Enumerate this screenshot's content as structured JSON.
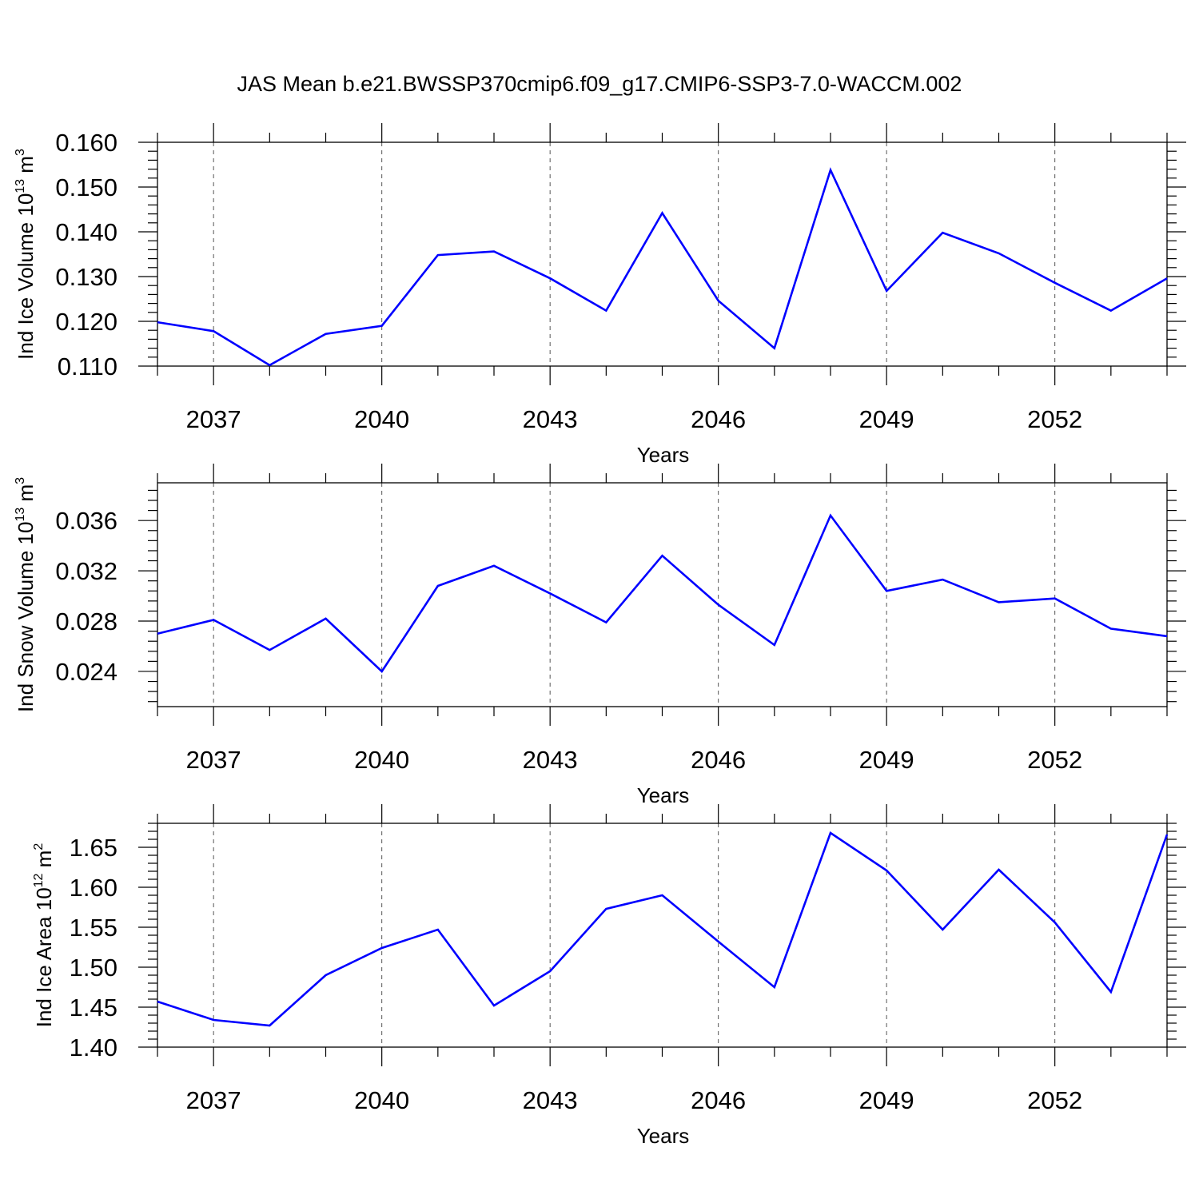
{
  "title": "JAS Mean b.e21.BWSSP370cmip6.f09_g17.CMIP6-SSP3-7.0-WACCM.002",
  "colors": {
    "series": "#0000ff",
    "axes": "#000000",
    "grid": "#555555"
  },
  "chart_data": [
    {
      "type": "line",
      "title": "",
      "xlabel": "Years",
      "ylabel": {
        "main": "Ind Ice Volume 10",
        "sup": "13",
        "unit": " m",
        "unit_sup": "3"
      },
      "xlim": [
        2036,
        2054
      ],
      "ylim": [
        0.11,
        0.16
      ],
      "xticks": [
        2037,
        2040,
        2043,
        2046,
        2049,
        2052
      ],
      "yticks": [
        0.11,
        0.12,
        0.13,
        0.14,
        0.15,
        0.16
      ],
      "ytick_labels": [
        "0.110",
        "0.120",
        "0.130",
        "0.140",
        "0.150",
        "0.160"
      ],
      "grid": "x-dashed",
      "x": [
        2036,
        2037,
        2038,
        2039,
        2040,
        2041,
        2042,
        2043,
        2044,
        2045,
        2046,
        2047,
        2048,
        2049,
        2050,
        2051,
        2052,
        2053,
        2054
      ],
      "series": [
        {
          "values": [
            0.1198,
            0.1178,
            0.1102,
            0.1172,
            0.119,
            0.1348,
            0.1356,
            0.1296,
            0.1224,
            0.1442,
            0.1246,
            0.114,
            0.1538,
            0.1268,
            0.1398,
            0.1352,
            0.1286,
            0.1224,
            0.1296
          ]
        }
      ]
    },
    {
      "type": "line",
      "title": "",
      "xlabel": "Years",
      "ylabel": {
        "main": "Ind Snow Volume 10",
        "sup": "13",
        "unit": " m",
        "unit_sup": "3"
      },
      "xlim": [
        2036,
        2054
      ],
      "ylim": [
        0.0212,
        0.039
      ],
      "xticks": [
        2037,
        2040,
        2043,
        2046,
        2049,
        2052
      ],
      "yticks": [
        0.024,
        0.028,
        0.032,
        0.036
      ],
      "ytick_labels": [
        "0.024",
        "0.028",
        "0.032",
        "0.036"
      ],
      "grid": "x-dashed",
      "x": [
        2036,
        2037,
        2038,
        2039,
        2040,
        2041,
        2042,
        2043,
        2044,
        2045,
        2046,
        2047,
        2048,
        2049,
        2050,
        2051,
        2052,
        2053,
        2054
      ],
      "series": [
        {
          "values": [
            0.027,
            0.0281,
            0.0257,
            0.0282,
            0.024,
            0.0308,
            0.0324,
            0.0302,
            0.0279,
            0.0332,
            0.0293,
            0.0261,
            0.0364,
            0.0304,
            0.0313,
            0.0295,
            0.0298,
            0.0274,
            0.0268
          ]
        }
      ]
    },
    {
      "type": "line",
      "title": "",
      "xlabel": "Years",
      "ylabel": {
        "main": "Ind Ice Area 10",
        "sup": "12",
        "unit": " m",
        "unit_sup": "2"
      },
      "xlim": [
        2036,
        2054
      ],
      "ylim": [
        1.4,
        1.68
      ],
      "xticks": [
        2037,
        2040,
        2043,
        2046,
        2049,
        2052
      ],
      "yticks": [
        1.4,
        1.45,
        1.5,
        1.55,
        1.6,
        1.65
      ],
      "ytick_labels": [
        "1.40",
        "1.45",
        "1.50",
        "1.55",
        "1.60",
        "1.65"
      ],
      "grid": "x-dashed",
      "x": [
        2036,
        2037,
        2038,
        2039,
        2040,
        2041,
        2042,
        2043,
        2044,
        2045,
        2046,
        2047,
        2048,
        2049,
        2050,
        2051,
        2052,
        2053,
        2054
      ],
      "series": [
        {
          "values": [
            1.457,
            1.434,
            1.427,
            1.49,
            1.524,
            1.547,
            1.452,
            1.495,
            1.573,
            1.59,
            1.532,
            1.475,
            1.668,
            1.621,
            1.547,
            1.622,
            1.556,
            1.469,
            1.666
          ]
        }
      ]
    }
  ]
}
